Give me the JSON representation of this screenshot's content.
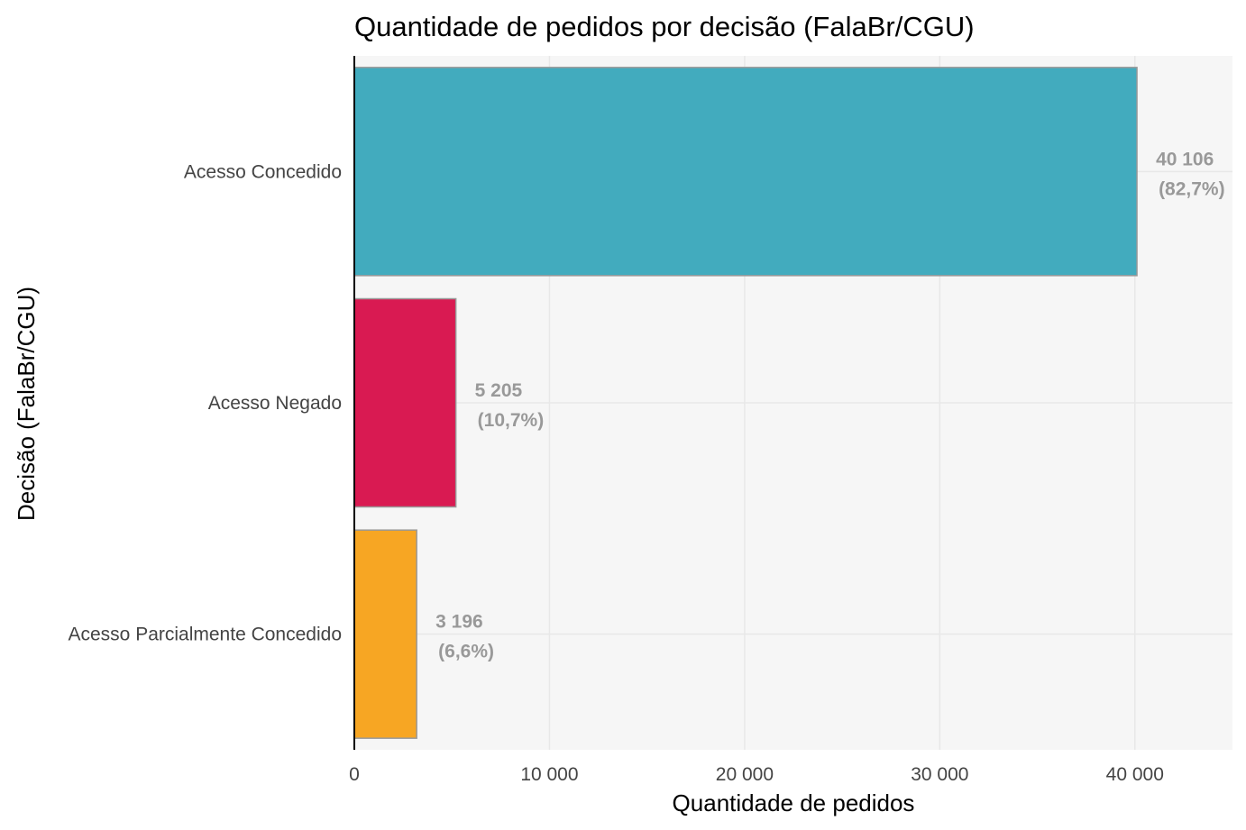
{
  "chart_data": {
    "type": "bar",
    "orientation": "horizontal",
    "title": "Quantidade de pedidos por decisão (FalaBr/CGU)",
    "xlabel": "Quantidade de pedidos",
    "ylabel": "Decisão (FalaBr/CGU)",
    "xlim": [
      0,
      45000
    ],
    "xticks": [
      0,
      10000,
      20000,
      30000,
      40000
    ],
    "xtick_labels": [
      "0",
      "10 000",
      "20 000",
      "30 000",
      "40 000"
    ],
    "grid": true,
    "categories": [
      "Acesso Concedido",
      "Acesso Negado",
      "Acesso Parcialmente Concedido"
    ],
    "values": [
      40106,
      5205,
      3196
    ],
    "value_labels": [
      "40 106",
      "5 205",
      "3 196"
    ],
    "percent_labels": [
      "(82,7%)",
      "(10,7%)",
      "(6,6%)"
    ],
    "colors": [
      "#42ABBE",
      "#D91A52",
      "#F7A623"
    ],
    "panel_background": "#F6F6F6",
    "grid_color": "#E8E8E8",
    "bar_border_color": "#999999"
  }
}
